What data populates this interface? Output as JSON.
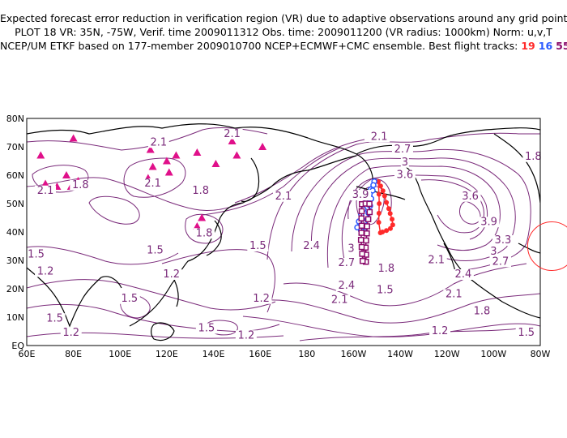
{
  "header": {
    "line1": "Expected forecast error reduction in verification region (VR) due to adaptive observations around any grid point.",
    "line2": "PLOT 18 VR: 35N, -75W, Verif. time 2009011312 Obs. time: 2009011200 (VR radius: 1000km) Norm: u,v,T",
    "line3_prefix": "NCEP/UM ETKF based on 177-member 2009010700 NCEP+ECMWF+CMC ensemble. Best flight tracks:",
    "tracks": [
      {
        "label": "19",
        "color": "#ff2a2a"
      },
      {
        "label": "16",
        "color": "#2a5aff"
      },
      {
        "label": "55",
        "color": "#8a0a6a"
      }
    ]
  },
  "map": {
    "lat_labels": [
      "80N",
      "70N",
      "60N",
      "50N",
      "40N",
      "30N",
      "20N",
      "10N",
      "EQ"
    ],
    "lon_labels": [
      "60E",
      "80E",
      "100E",
      "120E",
      "140E",
      "160E",
      "180",
      "160W",
      "140W",
      "120W",
      "100W",
      "80W"
    ],
    "contour_color": "#7a2a7a",
    "coast_color": "#000000",
    "contour_labels": [
      {
        "text": "2.1",
        "lon": 116.5,
        "lat": 70.5
      },
      {
        "text": "2.1",
        "lon": 148,
        "lat": 73.5
      },
      {
        "text": "2.1",
        "lon": 68,
        "lat": 53.5
      },
      {
        "text": "1.8",
        "lon": 83,
        "lat": 55.5
      },
      {
        "text": "2.1",
        "lon": 114,
        "lat": 56
      },
      {
        "text": "1.8",
        "lon": 134.5,
        "lat": 53.5
      },
      {
        "text": "2.1",
        "lon": 170,
        "lat": 51.5
      },
      {
        "text": "1.8",
        "lon": 136,
        "lat": 38.5
      },
      {
        "text": "1.5",
        "lon": 64,
        "lat": 31
      },
      {
        "text": "1.5",
        "lon": 115,
        "lat": 32.5
      },
      {
        "text": "1.5",
        "lon": 159,
        "lat": 34
      },
      {
        "text": "1.2",
        "lon": 68,
        "lat": 25
      },
      {
        "text": "1.2",
        "lon": 122,
        "lat": 24
      },
      {
        "text": "1.5",
        "lon": 104,
        "lat": 15.5
      },
      {
        "text": "1.2",
        "lon": 160.5,
        "lat": 15.5
      },
      {
        "text": "1.5",
        "lon": 72,
        "lat": 8.5
      },
      {
        "text": "1.2",
        "lon": 79,
        "lat": 3.5
      },
      {
        "text": "1.5",
        "lon": 137,
        "lat": 5
      },
      {
        "text": "1.2",
        "lon": 154,
        "lat": 2.5
      },
      {
        "text": "2.4",
        "lon": 182,
        "lat": 34
      },
      {
        "text": "2.7",
        "lon": 197,
        "lat": 28
      },
      {
        "text": "3",
        "lon": 199,
        "lat": 33
      },
      {
        "text": "2.4",
        "lon": 197,
        "lat": 20
      },
      {
        "text": "2.1",
        "lon": 194,
        "lat": 15
      },
      {
        "text": "1.8",
        "lon": 214,
        "lat": 26
      },
      {
        "text": "1.5",
        "lon": 213.5,
        "lat": 18.5
      },
      {
        "text": "2.1",
        "lon": 211,
        "lat": 72.5
      },
      {
        "text": "2.7",
        "lon": 221,
        "lat": 68
      },
      {
        "text": "3",
        "lon": 222,
        "lat": 63.5
      },
      {
        "text": "3.6",
        "lon": 222,
        "lat": 59
      },
      {
        "text": "3.9",
        "lon": 203,
        "lat": 52
      },
      {
        "text": "3.6",
        "lon": 250,
        "lat": 51.5
      },
      {
        "text": "3.9",
        "lon": 258,
        "lat": 42.5
      },
      {
        "text": "3.3",
        "lon": 264,
        "lat": 36
      },
      {
        "text": "3",
        "lon": 260,
        "lat": 32
      },
      {
        "text": "2.7",
        "lon": 263,
        "lat": 28.5
      },
      {
        "text": "2.4",
        "lon": 247,
        "lat": 24
      },
      {
        "text": "2.1",
        "lon": 235.5,
        "lat": 29
      },
      {
        "text": "2.1",
        "lon": 243,
        "lat": 17
      },
      {
        "text": "1.8",
        "lon": 255,
        "lat": 11
      },
      {
        "text": "1.2",
        "lon": 237,
        "lat": 4
      },
      {
        "text": "1.5",
        "lon": 274,
        "lat": 3.5
      },
      {
        "text": "1.8",
        "lon": 277,
        "lat": 65.5
      }
    ],
    "triangle_markers": [
      {
        "lon": 66,
        "lat": 67
      },
      {
        "lon": 80,
        "lat": 73
      },
      {
        "lon": 68,
        "lat": 57
      },
      {
        "lon": 77,
        "lat": 60
      },
      {
        "lon": 82,
        "lat": 58
      },
      {
        "lon": 73,
        "lat": 56
      },
      {
        "lon": 79,
        "lat": 56
      },
      {
        "lon": 113,
        "lat": 69
      },
      {
        "lon": 114,
        "lat": 63
      },
      {
        "lon": 112,
        "lat": 59
      },
      {
        "lon": 120,
        "lat": 65
      },
      {
        "lon": 121,
        "lat": 61
      },
      {
        "lon": 124,
        "lat": 67
      },
      {
        "lon": 133,
        "lat": 68
      },
      {
        "lon": 141,
        "lat": 64
      },
      {
        "lon": 148,
        "lat": 72
      },
      {
        "lon": 150,
        "lat": 67
      },
      {
        "lon": 161,
        "lat": 70
      },
      {
        "lon": 133,
        "lat": 42
      },
      {
        "lon": 135,
        "lat": 45
      }
    ],
    "verification_region": {
      "lon": 285,
      "lat": 35,
      "radius_km": 1000
    }
  },
  "flight_tracks": [
    {
      "id": "19",
      "color": "#ff2a2a",
      "marker": "dot",
      "lonlat": [
        [
          210.6,
          57.7
        ],
        [
          211.6,
          56.2
        ],
        [
          212.6,
          54.5
        ],
        [
          213.3,
          52.7
        ],
        [
          214.1,
          50.4
        ],
        [
          215.1,
          48.2
        ],
        [
          215.7,
          46.5
        ],
        [
          216.5,
          44.5
        ],
        [
          216.8,
          42.5
        ],
        [
          215.8,
          41.2
        ],
        [
          214.1,
          40.5
        ],
        [
          212.4,
          40.0
        ],
        [
          211.5,
          39.7
        ],
        [
          210.8,
          43.4
        ],
        [
          210.9,
          46.6
        ],
        [
          211.0,
          50.0
        ],
        [
          210.9,
          53.3
        ]
      ]
    },
    {
      "id": "16",
      "color": "#2a5aff",
      "marker": "circle",
      "lonlat": [
        [
          208.9,
          57.8
        ],
        [
          207.4,
          55.0
        ],
        [
          206.3,
          52.5
        ],
        [
          205.4,
          50.5
        ],
        [
          204.3,
          48.0
        ],
        [
          203.3,
          46.0
        ],
        [
          202.3,
          43.7
        ],
        [
          201.6,
          41.6
        ],
        [
          203.2,
          40.5
        ],
        [
          204.9,
          40.1
        ],
        [
          205.3,
          42.2
        ],
        [
          205.9,
          44.4
        ],
        [
          206.4,
          46.7
        ],
        [
          207.1,
          49.2
        ],
        [
          207.6,
          51.7
        ],
        [
          208.2,
          54.6
        ],
        [
          208.5,
          56.5
        ]
      ]
    },
    {
      "id": "55",
      "color": "#8a0a6a",
      "marker": "square",
      "lonlat": [
        [
          203.6,
          49.8
        ],
        [
          205.2,
          50.0
        ],
        [
          206.8,
          49.9
        ],
        [
          206.9,
          47.0
        ],
        [
          206.3,
          44.5
        ],
        [
          205.8,
          42.0
        ],
        [
          205.7,
          39.5
        ],
        [
          205.4,
          37.0
        ],
        [
          205.2,
          34.5
        ],
        [
          205.4,
          32.0
        ],
        [
          205.3,
          29.5
        ],
        [
          203.9,
          29.8
        ],
        [
          203.7,
          32.3
        ],
        [
          203.5,
          34.7
        ],
        [
          203.2,
          37.2
        ],
        [
          203.4,
          39.7
        ],
        [
          203.5,
          42.2
        ],
        [
          203.4,
          44.8
        ],
        [
          203.5,
          47.3
        ]
      ]
    }
  ]
}
